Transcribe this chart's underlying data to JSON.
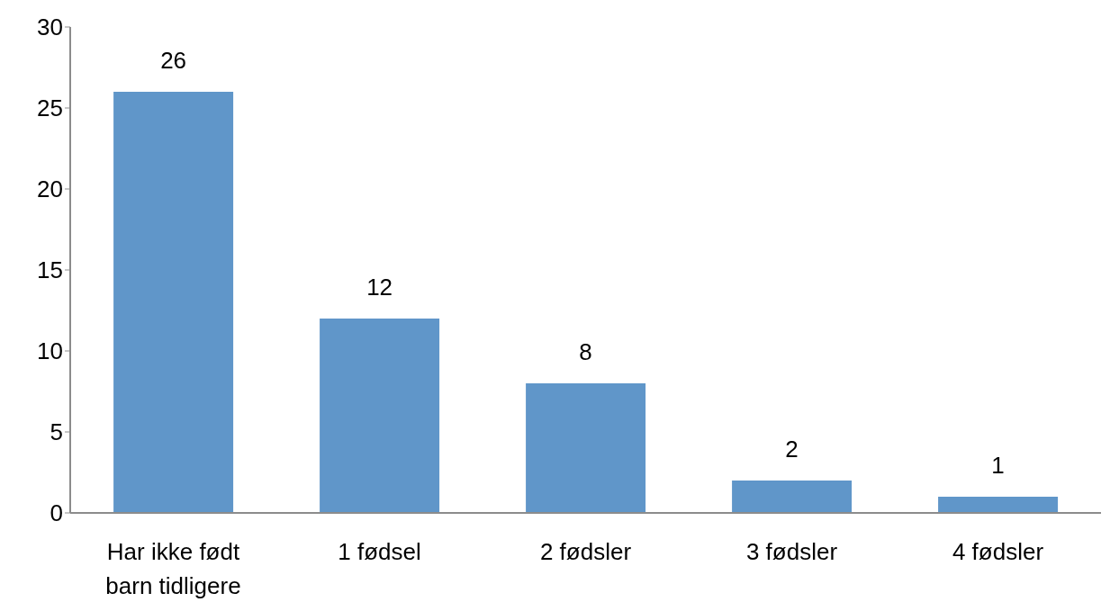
{
  "chart_data": {
    "type": "bar",
    "categories": [
      "Har ikke født barn tidligere",
      "1 fødsel",
      "2 fødsler",
      "3 fødsler",
      "4 fødsler"
    ],
    "values": [
      26,
      12,
      8,
      2,
      1
    ],
    "color": "#6096c9",
    "ylim": [
      0,
      30
    ],
    "yticks": [
      0,
      5,
      10,
      15,
      20,
      25,
      30
    ],
    "grid": false,
    "data_labels": true
  }
}
